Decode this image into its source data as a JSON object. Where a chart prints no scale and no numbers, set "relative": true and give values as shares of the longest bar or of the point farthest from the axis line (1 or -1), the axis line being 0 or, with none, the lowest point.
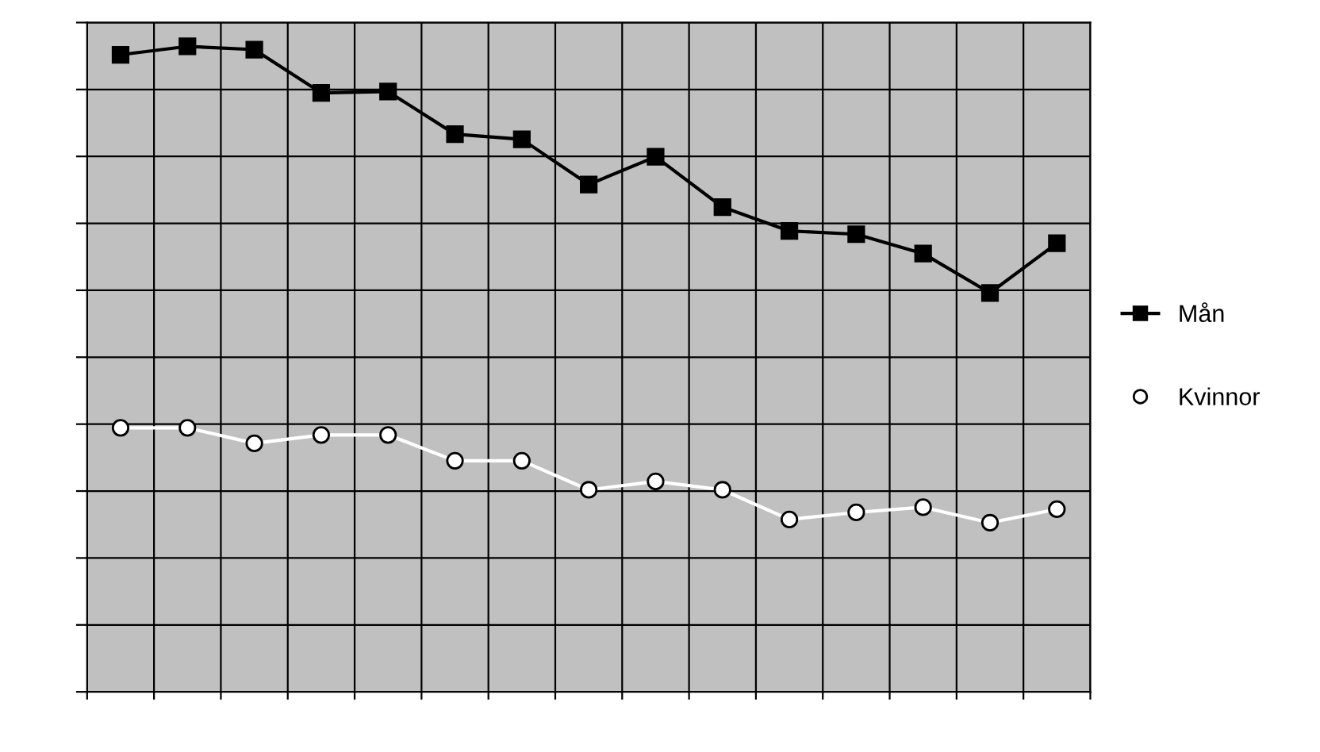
{
  "chart_data": {
    "type": "line",
    "relative": true,
    "grid": true,
    "legend": "right",
    "categories": [
      null,
      null,
      null,
      null,
      null,
      null,
      null,
      null,
      null,
      null,
      null,
      null,
      null,
      null,
      null
    ],
    "series": [
      {
        "name": "Mån",
        "color": "#000000",
        "marker": "square",
        "values": [
          0.987,
          1,
          0.995,
          0.928,
          0.93,
          0.864,
          0.856,
          0.786,
          0.829,
          0.751,
          0.714,
          0.709,
          0.679,
          0.618,
          0.695
        ]
      },
      {
        "name": "Kvinnor",
        "color": "#ffffff",
        "marker": "circle",
        "values": [
          0.409,
          0.409,
          0.385,
          0.398,
          0.398,
          0.358,
          0.358,
          0.313,
          0.326,
          0.313,
          0.267,
          0.278,
          0.286,
          0.262,
          0.283
        ]
      }
    ]
  }
}
